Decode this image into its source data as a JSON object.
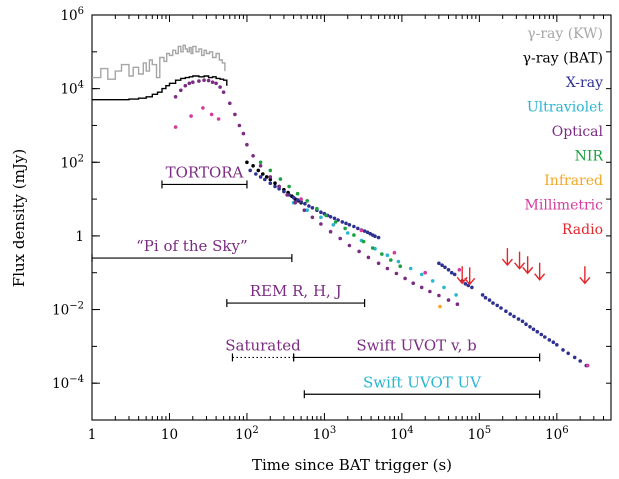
{
  "chart_data": {
    "type": "scatter",
    "xlabel": "Time since BAT trigger (s)",
    "ylabel": "Flux density (mJy)",
    "x_scale": "log",
    "y_scale": "log",
    "xlim": [
      1,
      5000000
    ],
    "ylim": [
      1e-05,
      1000000
    ],
    "x_ticks": [
      {
        "value": 1,
        "label": "1",
        "exp": ""
      },
      {
        "value": 10,
        "label": "10",
        "exp": ""
      },
      {
        "value": 100,
        "label": "10",
        "exp": "2"
      },
      {
        "value": 1000,
        "label": "10",
        "exp": "3"
      },
      {
        "value": 10000,
        "label": "10",
        "exp": "4"
      },
      {
        "value": 100000,
        "label": "10",
        "exp": "5"
      },
      {
        "value": 1000000,
        "label": "10",
        "exp": "6"
      }
    ],
    "y_ticks": [
      {
        "value": 0.0001,
        "label": "10",
        "exp": "−4"
      },
      {
        "value": 0.01,
        "label": "10",
        "exp": "−2"
      },
      {
        "value": 1,
        "label": "1",
        "exp": ""
      },
      {
        "value": 100,
        "label": "10",
        "exp": "2"
      },
      {
        "value": 10000,
        "label": "10",
        "exp": "4"
      },
      {
        "value": 1000000,
        "label": "10",
        "exp": "6"
      }
    ],
    "legend": {
      "placement": "top-right",
      "entries": [
        {
          "label": "γ-ray (KW)",
          "color": "#a6a6a6"
        },
        {
          "label": "γ-ray (BAT)",
          "color": "#000000"
        },
        {
          "label": "X-ray",
          "color": "#2e3192"
        },
        {
          "label": "Ultraviolet",
          "color": "#29b6d1"
        },
        {
          "label": "Optical",
          "color": "#7b2c82"
        },
        {
          "label": "NIR",
          "color": "#1aa140"
        },
        {
          "label": "Infrared",
          "color": "#f5a623"
        },
        {
          "label": "Millimetric",
          "color": "#d6399a"
        },
        {
          "label": "Radio",
          "color": "#e4262b"
        }
      ]
    },
    "series": [
      {
        "name": "γ-ray (KW)",
        "color": "#a6a6a6",
        "style": "step",
        "x": [
          1,
          1.3,
          1.6,
          2,
          2.4,
          3,
          3.4,
          4,
          4.6,
          5,
          5.5,
          6,
          6.8,
          7.5,
          8.5,
          9.2,
          10,
          11,
          12,
          13,
          14,
          15,
          16,
          17,
          18,
          19,
          20,
          22,
          24,
          26,
          28,
          30,
          33,
          36,
          40,
          44,
          48,
          52
        ],
        "y": [
          20000,
          35000,
          18000,
          30000,
          45000,
          22000,
          38000,
          25000,
          50000,
          30000,
          60000,
          45000,
          20000,
          70000,
          55000,
          90000,
          80000,
          110000,
          90000,
          140000,
          100000,
          150000,
          120000,
          100000,
          130000,
          90000,
          140000,
          100000,
          120000,
          80000,
          110000,
          90000,
          100000,
          70000,
          90000,
          60000,
          50000,
          30000
        ]
      },
      {
        "name": "γ-ray (BAT)",
        "color": "#000000",
        "style": "step",
        "x": [
          1,
          2,
          3,
          4,
          5,
          6,
          7,
          8,
          9,
          10,
          12,
          14,
          16,
          18,
          20,
          24,
          28,
          32,
          36,
          40,
          45,
          50,
          55
        ],
        "y": [
          5000,
          5000,
          5200,
          5500,
          6000,
          7000,
          8000,
          10000,
          12000,
          14000,
          17000,
          19000,
          20000,
          21000,
          22000,
          21000,
          22000,
          20000,
          21000,
          19000,
          18000,
          17000,
          12000
        ]
      },
      {
        "name": "γ-ray (BAT) late",
        "color": "#000000",
        "style": "dots",
        "x": [
          100,
          120,
          140,
          160,
          180,
          200,
          230,
          260,
          300,
          340,
          380,
          420,
          460,
          500
        ],
        "y": [
          100,
          80,
          60,
          48,
          40,
          34,
          27,
          22,
          18,
          15,
          12,
          10,
          9,
          8
        ]
      },
      {
        "name": "X-ray",
        "color": "#2e3192",
        "style": "dots",
        "x": [
          110,
          130,
          150,
          170,
          200,
          230,
          260,
          300,
          350,
          400,
          450,
          500,
          560,
          630,
          700,
          800,
          900,
          1000,
          1100,
          1200,
          1350,
          1500,
          1700,
          1900,
          2100,
          2400,
          2700,
          3000,
          3300,
          3600,
          3900,
          4200,
          4500,
          5000,
          30000,
          33000,
          36000,
          40000,
          44000,
          48000,
          60000,
          66000,
          72000,
          80000,
          110000,
          120000,
          135000,
          150000,
          170000,
          190000,
          220000,
          250000,
          280000,
          320000,
          360000,
          400000,
          450000,
          500000,
          560000,
          630000,
          700000,
          800000,
          900000,
          1000000,
          1200000,
          1400000,
          1700000,
          2000000,
          2400000
        ],
        "y": [
          60,
          48,
          40,
          34,
          27,
          22,
          19,
          16,
          13,
          11,
          9.5,
          8.5,
          7.5,
          6.5,
          5.8,
          5,
          4.4,
          4,
          3.6,
          3.3,
          3,
          2.7,
          2.4,
          2.2,
          2,
          1.8,
          1.6,
          1.45,
          1.35,
          1.25,
          1.15,
          1.05,
          0.98,
          0.9,
          0.18,
          0.16,
          0.14,
          0.12,
          0.1,
          0.09,
          0.06,
          0.05,
          0.045,
          0.04,
          0.025,
          0.021,
          0.018,
          0.015,
          0.013,
          0.011,
          0.009,
          0.0075,
          0.0065,
          0.0055,
          0.0048,
          0.004,
          0.0034,
          0.0029,
          0.0025,
          0.0021,
          0.0018,
          0.0015,
          0.0013,
          0.0011,
          0.0008,
          0.00065,
          0.0005,
          0.0004,
          0.0003
        ]
      },
      {
        "name": "Ultraviolet",
        "color": "#29b6d1",
        "style": "dots",
        "x": [
          400,
          600,
          900,
          1300,
          2000,
          3000,
          4500,
          6500,
          9000,
          13000,
          18000,
          25000,
          35000,
          50000
        ],
        "y": [
          8,
          5,
          3.2,
          2,
          1.2,
          0.75,
          0.45,
          0.3,
          0.2,
          0.13,
          0.09,
          0.06,
          0.04,
          0.025
        ]
      },
      {
        "name": "Optical",
        "color": "#7b2c82",
        "style": "dots",
        "x": [
          12,
          14,
          16,
          18,
          20,
          24,
          28,
          32,
          36,
          40,
          45,
          50,
          60,
          70,
          80,
          90,
          100,
          120,
          150,
          200,
          260,
          330,
          420,
          550,
          700,
          900,
          1200,
          1600,
          2100,
          2800,
          3700,
          5000,
          6500,
          8500,
          11000,
          14000,
          18000,
          23000,
          30000,
          40000,
          52000
        ],
        "y": [
          6000,
          9000,
          12000,
          14000,
          15000,
          16000,
          17000,
          16500,
          15000,
          14000,
          11000,
          8000,
          4000,
          2000,
          1000,
          600,
          300,
          150,
          80,
          40,
          22,
          13,
          8,
          5,
          3.2,
          2.1,
          1.3,
          0.85,
          0.55,
          0.38,
          0.26,
          0.18,
          0.13,
          0.095,
          0.07,
          0.052,
          0.04,
          0.031,
          0.024,
          0.018,
          0.014
        ]
      },
      {
        "name": "NIR",
        "color": "#1aa140",
        "style": "dots",
        "x": [
          150,
          200,
          270,
          350,
          450,
          600,
          800,
          1050,
          1400,
          1850,
          2400,
          3200,
          4200,
          5500,
          7200,
          9500
        ],
        "y": [
          100,
          60,
          35,
          22,
          14,
          9,
          5.5,
          3.6,
          2.4,
          1.6,
          1.05,
          0.7,
          0.47,
          0.32,
          0.22,
          0.15
        ]
      },
      {
        "name": "Infrared",
        "color": "#f5a623",
        "style": "dots",
        "x": [
          31000
        ],
        "y": [
          0.012
        ]
      },
      {
        "name": "Millimetric",
        "color": "#d6399a",
        "style": "dots",
        "x": [
          12,
          19,
          27,
          35,
          43,
          500,
          3000,
          8000,
          20000,
          55000,
          2500000
        ],
        "y": [
          900,
          1800,
          3000,
          2000,
          1500,
          10,
          1.4,
          0.35,
          0.1,
          0.12,
          0.0003
        ]
      },
      {
        "name": "Radio",
        "color": "#e4262b",
        "style": "upper-limits",
        "x": [
          60000,
          75000,
          230000,
          330000,
          420000,
          600000,
          2300000
        ],
        "y": [
          0.08,
          0.075,
          0.25,
          0.2,
          0.15,
          0.1,
          0.08
        ]
      }
    ],
    "intervals": [
      {
        "label": "TORTORA",
        "x_start": 8,
        "x_end": 100,
        "y": 25,
        "color": "#000000",
        "style": "solid",
        "label_color": "#7b2c82"
      },
      {
        "label": "“Pi of the Sky”",
        "x_start": 1,
        "x_end": 380,
        "y": 0.25,
        "color": "#000000",
        "style": "solid",
        "label_color": "#7b2c82"
      },
      {
        "label": "REM R, H, J",
        "x_start": 55,
        "x_end": 3300,
        "y": 0.015,
        "color": "#000000",
        "style": "solid",
        "label_color": "#7b2c82"
      },
      {
        "label": "Swift UVOT v, b",
        "x_start": 400,
        "x_end": 600000,
        "y": 0.0005,
        "color": "#000000",
        "style": "solid",
        "label_color": "#7b2c82"
      },
      {
        "label": "Saturated",
        "x_start": 65,
        "x_end": 400,
        "y": 0.0005,
        "color": "#000000",
        "style": "dotted",
        "label_color": "#7b2c82"
      },
      {
        "label": "Swift UVOT UV",
        "x_start": 550,
        "x_end": 600000,
        "y": 5e-05,
        "color": "#000000",
        "style": "solid",
        "label_color": "#29b6d1"
      }
    ],
    "annotations": [
      {
        "label": "REM",
        "color": "#7b2c82"
      },
      {
        "label": "R",
        "color": "#7b2c82"
      },
      {
        "label": "H",
        "color": "#1aa140"
      },
      {
        "label": "J",
        "color": "#1aa140"
      }
    ]
  }
}
